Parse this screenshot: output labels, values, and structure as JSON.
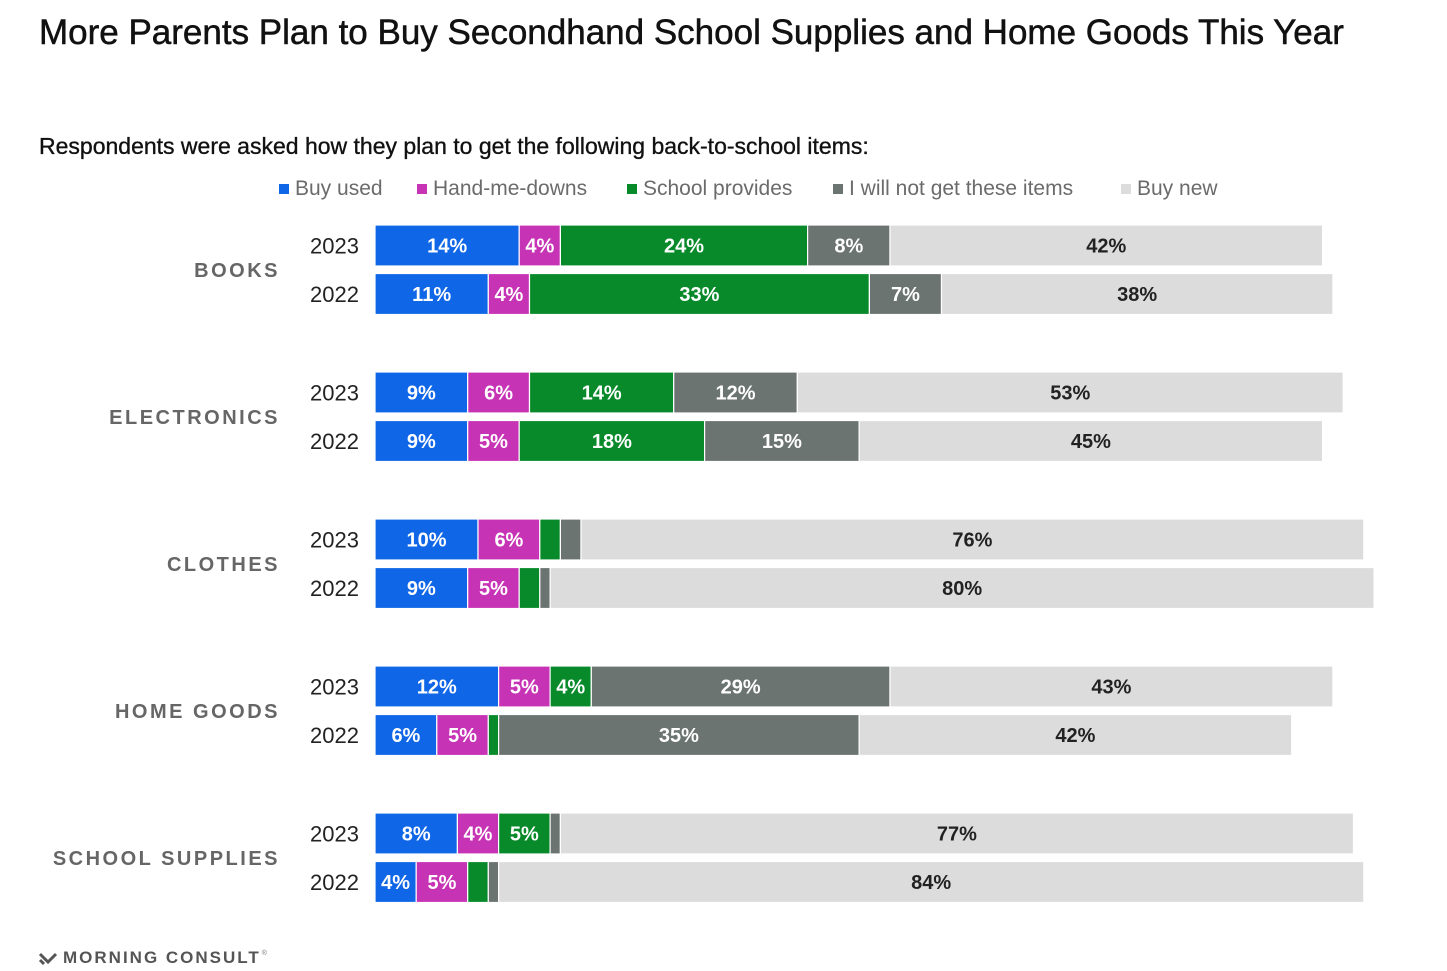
{
  "chart_data": {
    "type": "bar",
    "orientation": "horizontal",
    "stacked": true,
    "title": "More Parents Plan to Buy Secondhand School Supplies and Home Goods This Year",
    "subtitle": "Respondents were asked how they plan to get the following back-to-school items:",
    "legend_position": "top",
    "grid": false,
    "series_names": [
      "Buy used",
      "Hand-me-downs",
      "School provides",
      "I will not get these items",
      "Buy new"
    ],
    "series_colors": [
      "#0f66e6",
      "#c733b5",
      "#088a2a",
      "#6b7471",
      "#dcdcdc"
    ],
    "label_colors": [
      "#ffffff",
      "#ffffff",
      "#ffffff",
      "#ffffff",
      "#222222"
    ],
    "groups": [
      {
        "category": "BOOKS",
        "rows": [
          {
            "year": "2023",
            "values": [
              14,
              4,
              24,
              8,
              42
            ],
            "labels": [
              "14%",
              "4%",
              "24%",
              "8%",
              "42%"
            ]
          },
          {
            "year": "2022",
            "values": [
              11,
              4,
              33,
              7,
              38
            ],
            "labels": [
              "11%",
              "4%",
              "33%",
              "7%",
              "38%"
            ]
          }
        ]
      },
      {
        "category": "ELECTRONICS",
        "rows": [
          {
            "year": "2023",
            "values": [
              9,
              6,
              14,
              12,
              53
            ],
            "labels": [
              "9%",
              "6%",
              "14%",
              "12%",
              "53%"
            ]
          },
          {
            "year": "2022",
            "values": [
              9,
              5,
              18,
              15,
              45
            ],
            "labels": [
              "9%",
              "5%",
              "18%",
              "15%",
              "45%"
            ]
          }
        ]
      },
      {
        "category": "CLOTHES",
        "rows": [
          {
            "year": "2023",
            "values": [
              10,
              6,
              2,
              2,
              76
            ],
            "labels": [
              "10%",
              "6%",
              "",
              "",
              "76%"
            ]
          },
          {
            "year": "2022",
            "values": [
              9,
              5,
              2,
              1,
              80
            ],
            "labels": [
              "9%",
              "5%",
              "",
              "",
              "80%"
            ]
          }
        ]
      },
      {
        "category": "HOME GOODS",
        "rows": [
          {
            "year": "2023",
            "values": [
              12,
              5,
              4,
              29,
              43
            ],
            "labels": [
              "12%",
              "5%",
              "4%",
              "29%",
              "43%"
            ]
          },
          {
            "year": "2022",
            "values": [
              6,
              5,
              1,
              35,
              42
            ],
            "labels": [
              "6%",
              "5%",
              "",
              "35%",
              "42%"
            ]
          }
        ]
      },
      {
        "category": "SCHOOL SUPPLIES",
        "rows": [
          {
            "year": "2023",
            "values": [
              8,
              4,
              5,
              1,
              77
            ],
            "labels": [
              "8%",
              "4%",
              "5%",
              "",
              "77%"
            ]
          },
          {
            "year": "2022",
            "values": [
              4,
              5,
              2,
              1,
              84
            ],
            "labels": [
              "4%",
              "5%",
              "",
              "",
              "84%"
            ]
          }
        ]
      }
    ]
  },
  "footer": {
    "brand": "MORNING CONSULT",
    "trademark": "®"
  }
}
